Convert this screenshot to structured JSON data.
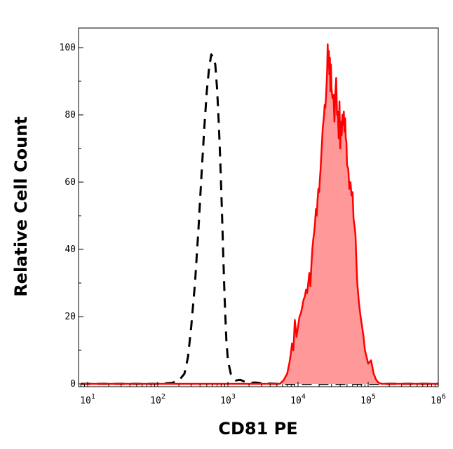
{
  "chart_data": {
    "type": "area",
    "title": "",
    "xlabel": "CD81 PE",
    "ylabel": "Relative Cell Count",
    "x_scale": "log",
    "xlim": [
      10,
      1000000
    ],
    "ylim": [
      0,
      105
    ],
    "grid": false,
    "legend": "none",
    "x_ticks": [
      {
        "value": 10,
        "base": "10",
        "exp": "1"
      },
      {
        "value": 100,
        "base": "10",
        "exp": "2"
      },
      {
        "value": 1000,
        "base": "10",
        "exp": "3"
      },
      {
        "value": 10000,
        "base": "10",
        "exp": "4"
      },
      {
        "value": 100000,
        "base": "10",
        "exp": "5"
      },
      {
        "value": 1000000,
        "base": "10",
        "exp": "6"
      }
    ],
    "y_ticks": [
      {
        "value": 0,
        "label": "0"
      },
      {
        "value": 20,
        "label": "20"
      },
      {
        "value": 40,
        "label": "40"
      },
      {
        "value": 60,
        "label": "60"
      },
      {
        "value": 80,
        "label": "80"
      },
      {
        "value": 100,
        "label": "100"
      }
    ],
    "series": [
      {
        "style": "dashed",
        "color": "#000000",
        "x": [
          8,
          100,
          160,
          200,
          240,
          270,
          300,
          340,
          380,
          420,
          460,
          500,
          540,
          580,
          620,
          660,
          700,
          740,
          780,
          820,
          860,
          900,
          950,
          1000,
          1100,
          1300,
          1500,
          1800,
          2000,
          2500,
          3000,
          5000,
          10000,
          100000,
          1000000
        ],
        "y": [
          0,
          0,
          0.3,
          1,
          3,
          8,
          17,
          30,
          46,
          62,
          76,
          87,
          94,
          98,
          97,
          95,
          88,
          78,
          66,
          52,
          38,
          25,
          13,
          7,
          3,
          1,
          1.2,
          0.5,
          0.3,
          0.4,
          0.2,
          0,
          0,
          0,
          0
        ]
      },
      {
        "style": "filled",
        "color": "#ff0000",
        "fill": "#ff9999",
        "x": [
          8,
          5500,
          6200,
          7000,
          7500,
          7900,
          8200,
          8600,
          9000,
          9500,
          10000,
          10500,
          11000,
          11500,
          12000,
          12500,
          13000,
          13500,
          14000,
          14500,
          15000,
          15500,
          16000,
          16500,
          17000,
          17500,
          18000,
          18500,
          19000,
          19500,
          20000,
          20500,
          21000,
          21500,
          22000,
          22500,
          23000,
          23500,
          24000,
          24500,
          25000,
          25500,
          26000,
          26500,
          27000,
          27500,
          28000,
          28500,
          29000,
          29500,
          30000,
          31000,
          32000,
          33000,
          34000,
          35000,
          36000,
          37000,
          38000,
          39000,
          40000,
          41000,
          42000,
          43000,
          44000,
          45000,
          46000,
          47000,
          48000,
          49000,
          50000,
          52000,
          54000,
          56000,
          58000,
          60000,
          62000,
          64000,
          66000,
          68000,
          70000,
          74000,
          78000,
          82000,
          86000,
          90000,
          95000,
          100000,
          110000,
          120000,
          130000,
          140000,
          150000,
          160000,
          200000,
          1000000
        ],
        "y": [
          0,
          0,
          1,
          3,
          6,
          9,
          12,
          10,
          19,
          14,
          17,
          20,
          21,
          23,
          25,
          26,
          28,
          27,
          30,
          33,
          29,
          35,
          40,
          43,
          45,
          48,
          52,
          50,
          55,
          58,
          57,
          61,
          64,
          68,
          72,
          76,
          78,
          80,
          83,
          82,
          85,
          89,
          93,
          101,
          94,
          99,
          92,
          97,
          87,
          95,
          88,
          85,
          86,
          78,
          86,
          91,
          80,
          81,
          73,
          84,
          70,
          78,
          74,
          80,
          77,
          81,
          75,
          79,
          73,
          72,
          65,
          64,
          58,
          60,
          56,
          57,
          49,
          47,
          44,
          36,
          30,
          24,
          20,
          17,
          14,
          10,
          8,
          6,
          7,
          3,
          1.2,
          0.4,
          0.1,
          0,
          0,
          0
        ]
      }
    ]
  }
}
